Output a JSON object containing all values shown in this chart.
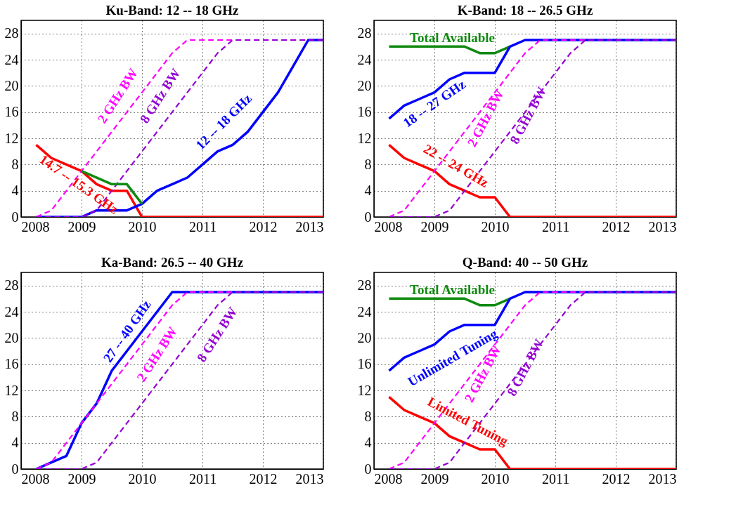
{
  "chart_data": [
    {
      "type": "line",
      "title": "Ku-Band:  12 -- 18 GHz",
      "xlim": [
        2008,
        2013
      ],
      "xticks": [
        2008,
        2009,
        2010,
        2011,
        2012,
        2013
      ],
      "ylim": [
        0,
        30
      ],
      "yticks": [
        0,
        4,
        8,
        12,
        16,
        20,
        24,
        28
      ],
      "grid": true,
      "line_style": "solid",
      "series": [
        {
          "name": "14.7 -- 15.3 GHz",
          "color": "#ff0000",
          "x": [
            2008.25,
            2008.5,
            2008.75,
            2009,
            2009.25,
            2009.5,
            2009.75,
            2010,
            2013
          ],
          "values": [
            11,
            9,
            8,
            7,
            5,
            4,
            4,
            0,
            0
          ]
        },
        {
          "name": "12 -- 18 GHz",
          "color": "#0000ff",
          "x": [
            2008.25,
            2009,
            2009.25,
            2009.75,
            2010,
            2010.25,
            2010.5,
            2010.75,
            2011,
            2011.25,
            2011.5,
            2011.75,
            2012,
            2012.25,
            2012.5,
            2012.75,
            2013
          ],
          "values": [
            0,
            0,
            1,
            1,
            2,
            4,
            5,
            6,
            8,
            10,
            11,
            13,
            16,
            19,
            23,
            27,
            27
          ]
        },
        {
          "name": "2 GHz BW",
          "color": "#ff00ff",
          "line_style": "dashed",
          "x": [
            2008.25,
            2008.5,
            2008.75,
            2009,
            2009.25,
            2009.5,
            2009.75,
            2010,
            2010.25,
            2010.5,
            2010.75,
            2013
          ],
          "values": [
            0,
            1,
            4,
            7,
            10,
            13,
            16,
            19,
            22,
            25,
            27,
            27
          ]
        },
        {
          "name": "8 GHz BW",
          "color": "#9400d3",
          "line_style": "dashed",
          "x": [
            2008.25,
            2009,
            2009.25,
            2009.5,
            2009.75,
            2010,
            2010.25,
            2010.5,
            2010.75,
            2011,
            2011.25,
            2011.5,
            2013
          ],
          "values": [
            0,
            0,
            1,
            4,
            7,
            10,
            13,
            16,
            19,
            22,
            25,
            27,
            27
          ]
        },
        {
          "color": "#108a10",
          "x": [
            2009,
            2009.5,
            2009.75,
            2010
          ],
          "values": [
            7,
            5,
            5,
            2
          ]
        }
      ]
    },
    {
      "type": "line",
      "title": "K-Band:  18 -- 26.5 GHz",
      "xlim": [
        2008,
        2013
      ],
      "xticks": [
        2008,
        2009,
        2010,
        2011,
        2012,
        2013
      ],
      "ylim": [
        0,
        30
      ],
      "yticks": [
        0,
        4,
        8,
        12,
        16,
        20,
        24,
        28
      ],
      "grid": true,
      "line_style": "solid",
      "series": [
        {
          "name": "Total Available",
          "color": "#108a10",
          "x": [
            2008.25,
            2009.5,
            2009.75,
            2010,
            2010.25
          ],
          "values": [
            26,
            26,
            25,
            25,
            26
          ]
        },
        {
          "name": "18 -- 27 GHz",
          "color": "#0000ff",
          "x": [
            2008.25,
            2008.5,
            2008.75,
            2009,
            2009.25,
            2009.5,
            2010,
            2010.25,
            2010.5,
            2013
          ],
          "values": [
            15,
            17,
            18,
            19,
            21,
            22,
            22,
            26,
            27,
            27
          ]
        },
        {
          "name": "22 -- 24 GHz",
          "color": "#ff0000",
          "x": [
            2008.25,
            2008.5,
            2008.75,
            2009,
            2009.25,
            2009.5,
            2009.75,
            2010,
            2010.25,
            2013
          ],
          "values": [
            11,
            9,
            8,
            7,
            5,
            4,
            3,
            3,
            0,
            0
          ]
        },
        {
          "name": "2 GHz BW",
          "color": "#ff00ff",
          "line_style": "dashed",
          "x": [
            2008.25,
            2008.5,
            2008.75,
            2009,
            2009.25,
            2009.5,
            2009.75,
            2010,
            2010.25,
            2010.5,
            2010.75,
            2013
          ],
          "values": [
            0,
            1,
            4,
            7,
            10,
            13,
            16,
            19,
            22,
            25,
            27,
            27
          ]
        },
        {
          "name": "8 GHz BW",
          "color": "#9400d3",
          "line_style": "dashed",
          "x": [
            2008.25,
            2009,
            2009.25,
            2009.5,
            2009.75,
            2010,
            2010.25,
            2010.5,
            2010.75,
            2011,
            2011.25,
            2011.5,
            2013
          ],
          "values": [
            0,
            0,
            1,
            4,
            7,
            10,
            13,
            16,
            19,
            22,
            25,
            27,
            27
          ]
        }
      ]
    },
    {
      "type": "line",
      "title": "Ka-Band:  26.5 -- 40 GHz",
      "xlim": [
        2008,
        2013
      ],
      "xticks": [
        2008,
        2009,
        2010,
        2011,
        2012,
        2013
      ],
      "ylim": [
        0,
        30
      ],
      "yticks": [
        0,
        4,
        8,
        12,
        16,
        20,
        24,
        28
      ],
      "grid": true,
      "line_style": "solid",
      "series": [
        {
          "name": "27 -- 40 GHz",
          "color": "#0000ff",
          "x": [
            2008.25,
            2008.5,
            2008.75,
            2009,
            2009.25,
            2009.5,
            2009.75,
            2010,
            2010.25,
            2010.5,
            2013
          ],
          "values": [
            0,
            1,
            2,
            7,
            10,
            15,
            18,
            21,
            24,
            27,
            27
          ]
        },
        {
          "name": "2 GHz BW",
          "color": "#ff00ff",
          "line_style": "dashed",
          "x": [
            2008.25,
            2008.5,
            2008.75,
            2009,
            2009.25,
            2009.5,
            2009.75,
            2010,
            2010.25,
            2010.5,
            2010.75,
            2013
          ],
          "values": [
            0,
            1,
            4,
            7,
            10,
            13,
            16,
            19,
            22,
            25,
            27,
            27
          ]
        },
        {
          "name": "8 GHz BW",
          "color": "#9400d3",
          "line_style": "dashed",
          "x": [
            2008.25,
            2009,
            2009.25,
            2009.5,
            2009.75,
            2010,
            2010.25,
            2010.5,
            2010.75,
            2011,
            2011.25,
            2011.5,
            2013
          ],
          "values": [
            0,
            0,
            1,
            4,
            7,
            10,
            13,
            16,
            19,
            22,
            25,
            27,
            27
          ]
        }
      ]
    },
    {
      "type": "line",
      "title": "Q-Band:  40 -- 50 GHz",
      "xlim": [
        2008,
        2013
      ],
      "xticks": [
        2008,
        2009,
        2010,
        2011,
        2012,
        2013
      ],
      "ylim": [
        0,
        30
      ],
      "yticks": [
        0,
        4,
        8,
        12,
        16,
        20,
        24,
        28
      ],
      "grid": true,
      "line_style": "solid",
      "series": [
        {
          "name": "Total Available",
          "color": "#108a10",
          "x": [
            2008.25,
            2009.5,
            2009.75,
            2010,
            2010.25
          ],
          "values": [
            26,
            26,
            25,
            25,
            26
          ]
        },
        {
          "name": "Unlimited Tuning",
          "color": "#0000ff",
          "x": [
            2008.25,
            2008.5,
            2008.75,
            2009,
            2009.25,
            2009.5,
            2010,
            2010.25,
            2010.5,
            2013
          ],
          "values": [
            15,
            17,
            18,
            19,
            21,
            22,
            22,
            26,
            27,
            27
          ]
        },
        {
          "name": "Limited Tuning",
          "color": "#ff0000",
          "x": [
            2008.25,
            2008.5,
            2008.75,
            2009,
            2009.25,
            2009.5,
            2009.75,
            2010,
            2010.25,
            2013
          ],
          "values": [
            11,
            9,
            8,
            7,
            5,
            4,
            3,
            3,
            0,
            0
          ]
        },
        {
          "name": "2 GHz BW",
          "color": "#ff00ff",
          "line_style": "dashed",
          "x": [
            2008.25,
            2008.5,
            2008.75,
            2009,
            2009.25,
            2009.5,
            2009.75,
            2010,
            2010.25,
            2010.5,
            2010.75,
            2013
          ],
          "values": [
            0,
            1,
            4,
            7,
            10,
            13,
            16,
            19,
            22,
            25,
            27,
            27
          ]
        },
        {
          "name": "8 GHz BW",
          "color": "#9400d3",
          "line_style": "dashed",
          "x": [
            2008.25,
            2009,
            2009.25,
            2009.5,
            2009.75,
            2010,
            2010.25,
            2010.5,
            2010.75,
            2011,
            2011.25,
            2011.5,
            2013
          ],
          "values": [
            0,
            0,
            1,
            4,
            7,
            10,
            13,
            16,
            19,
            22,
            25,
            27,
            27
          ]
        }
      ]
    }
  ]
}
